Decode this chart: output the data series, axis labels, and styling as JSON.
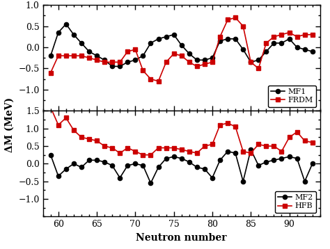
{
  "top_panel": {
    "mf1_x": [
      59,
      60,
      61,
      62,
      63,
      64,
      65,
      66,
      67,
      68,
      69,
      70,
      71,
      72,
      73,
      74,
      75,
      76,
      77,
      78,
      79,
      80,
      81,
      82,
      83,
      84,
      85,
      86,
      87,
      88,
      89,
      90,
      91,
      92,
      93
    ],
    "mf1_y": [
      -0.2,
      0.35,
      0.55,
      0.3,
      0.1,
      -0.1,
      -0.2,
      -0.3,
      -0.45,
      -0.45,
      -0.35,
      -0.3,
      -0.2,
      0.1,
      0.2,
      0.25,
      0.3,
      0.05,
      -0.15,
      -0.3,
      -0.3,
      -0.25,
      0.15,
      0.2,
      0.2,
      -0.05,
      -0.35,
      -0.3,
      -0.1,
      0.1,
      0.1,
      0.2,
      0.0,
      -0.05,
      -0.1
    ],
    "frdm_x": [
      59,
      60,
      61,
      62,
      63,
      64,
      65,
      66,
      67,
      68,
      69,
      70,
      71,
      72,
      73,
      74,
      75,
      76,
      77,
      78,
      79,
      80,
      81,
      82,
      83,
      84,
      85,
      86,
      87,
      88,
      89,
      90,
      91,
      92,
      93
    ],
    "frdm_y": [
      -0.6,
      -0.2,
      -0.2,
      -0.2,
      -0.2,
      -0.25,
      -0.3,
      -0.35,
      -0.35,
      -0.35,
      -0.1,
      -0.05,
      -0.55,
      -0.75,
      -0.8,
      -0.35,
      -0.15,
      -0.2,
      -0.35,
      -0.45,
      -0.4,
      -0.35,
      0.25,
      0.65,
      0.7,
      0.5,
      -0.35,
      -0.5,
      0.1,
      0.25,
      0.3,
      0.35,
      0.25,
      0.3,
      0.3
    ],
    "ylim": [
      -1.5,
      1.0
    ],
    "yticks": [
      -1.0,
      -0.5,
      0.0,
      0.5,
      1.0
    ],
    "legend_mf1": "MF1",
    "legend_frdm": "FRDM"
  },
  "bottom_panel": {
    "mf2_x": [
      59,
      60,
      61,
      62,
      63,
      64,
      65,
      66,
      67,
      68,
      69,
      70,
      71,
      72,
      73,
      74,
      75,
      76,
      77,
      78,
      79,
      80,
      81,
      82,
      83,
      84,
      85,
      86,
      87,
      88,
      89,
      90,
      91,
      92,
      93
    ],
    "mf2_y": [
      0.25,
      -0.35,
      -0.15,
      0.0,
      -0.1,
      0.1,
      0.1,
      0.05,
      -0.05,
      -0.4,
      -0.05,
      0.0,
      -0.05,
      -0.55,
      -0.1,
      0.15,
      0.2,
      0.15,
      0.05,
      -0.1,
      -0.15,
      -0.4,
      0.1,
      0.35,
      0.3,
      -0.5,
      0.4,
      -0.05,
      0.05,
      0.1,
      0.15,
      0.2,
      0.15,
      -0.5,
      0.0
    ],
    "hfb_x": [
      59,
      60,
      61,
      62,
      63,
      64,
      65,
      66,
      67,
      68,
      69,
      70,
      71,
      72,
      73,
      74,
      75,
      76,
      77,
      78,
      79,
      80,
      81,
      82,
      83,
      84,
      85,
      86,
      87,
      88,
      89,
      90,
      91,
      92,
      93
    ],
    "hfb_y": [
      1.6,
      1.1,
      1.3,
      0.95,
      0.75,
      0.7,
      0.65,
      0.5,
      0.45,
      0.3,
      0.45,
      0.35,
      0.25,
      0.25,
      0.45,
      0.45,
      0.45,
      0.4,
      0.35,
      0.3,
      0.5,
      0.55,
      1.1,
      1.15,
      1.05,
      0.35,
      0.3,
      0.55,
      0.5,
      0.5,
      0.35,
      0.75,
      0.9,
      0.65,
      0.6
    ],
    "ylim": [
      -1.5,
      1.5
    ],
    "yticks": [
      -1.0,
      -0.5,
      0.0,
      0.5,
      1.0,
      1.5
    ],
    "legend_mf2": "MF2",
    "legend_hfb": "HFB"
  },
  "xlabel": "Neutron number",
  "ylabel": "ΔM (MeV)",
  "xlim": [
    58,
    94
  ],
  "xticks": [
    60,
    65,
    70,
    75,
    80,
    85,
    90
  ],
  "mf_color": "#000000",
  "frdm_hfb_color": "#cc0000",
  "marker_circle": "o",
  "marker_square": "s",
  "linewidth": 1.2,
  "markersize": 4.5
}
